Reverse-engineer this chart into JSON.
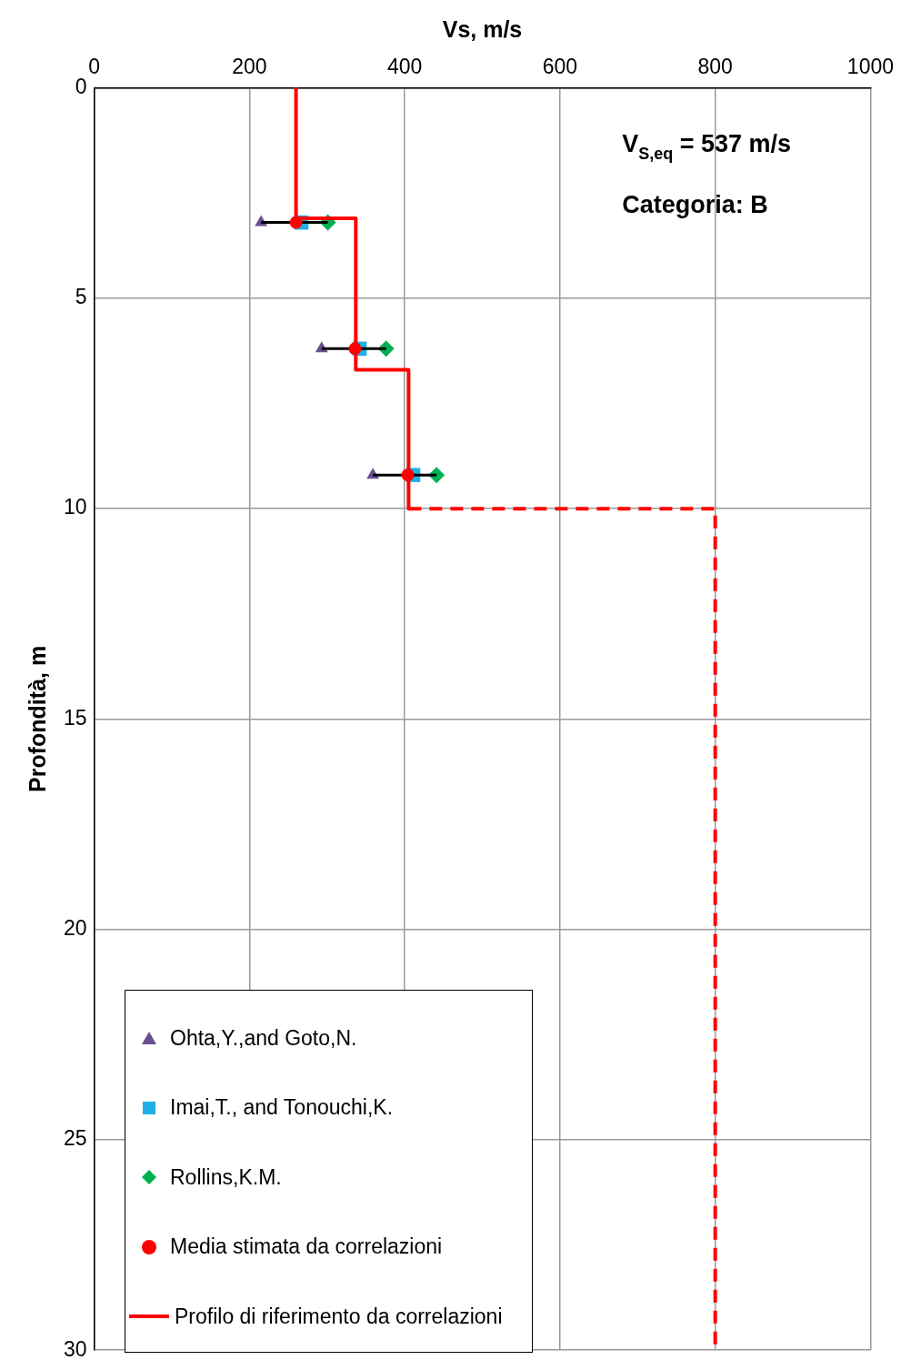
{
  "chart_data": {
    "type": "scatter",
    "xlabel": "Vs, m/s",
    "ylabel": "Profondità, m",
    "xlim": [
      0,
      1000
    ],
    "xticks": [
      0,
      200,
      400,
      600,
      800,
      1000
    ],
    "ylim": [
      30,
      0
    ],
    "yticks": [
      0,
      5,
      10,
      15,
      20,
      25,
      30
    ],
    "grid": true,
    "legend": "bottom left",
    "annotations": [
      "V$_{S,eq}$ = 537 m/s",
      "Categoria: B"
    ],
    "series": [
      {
        "name": "Ohta,Y.,and Goto,N.",
        "type": "scatter",
        "marker": "triangle",
        "color": "#6a4f8f",
        "x": [
          215,
          293,
          359
        ],
        "values": [
          3.2,
          6.2,
          9.2
        ]
      },
      {
        "name": "Imai,T., and Tonouchi,K.",
        "type": "scatter",
        "marker": "square",
        "color": "#1fb0e6",
        "x": [
          267,
          342,
          411
        ],
        "values": [
          3.2,
          6.2,
          9.2
        ]
      },
      {
        "name": "Rollins,K.M.",
        "type": "scatter",
        "marker": "diamond",
        "color": "#00b050",
        "x": [
          301,
          376,
          441
        ],
        "values": [
          3.2,
          6.2,
          9.2
        ]
      },
      {
        "name": "Media stimata da correlazioni",
        "type": "scatter",
        "marker": "circle",
        "color": "#ff0000",
        "x": [
          260,
          336,
          404
        ],
        "values": [
          3.2,
          6.2,
          9.2
        ],
        "xerrors": [
          [
            215,
            301
          ],
          [
            293,
            376
          ],
          [
            359,
            441
          ]
        ]
      },
      {
        "name": "Profilo di riferimento da correlazioni",
        "type": "line",
        "marker": "none",
        "line_style": "solid",
        "color": "#ff0000",
        "x": [
          260,
          260,
          337,
          337,
          405,
          405
        ],
        "values": [
          0,
          3.1,
          3.1,
          6.7,
          6.7,
          10
        ]
      },
      {
        "type": "line",
        "marker": "none",
        "line_style": "dashed",
        "color": "#ff0000",
        "x": [
          405,
          800,
          800
        ],
        "values": [
          10,
          10,
          30
        ]
      }
    ]
  }
}
